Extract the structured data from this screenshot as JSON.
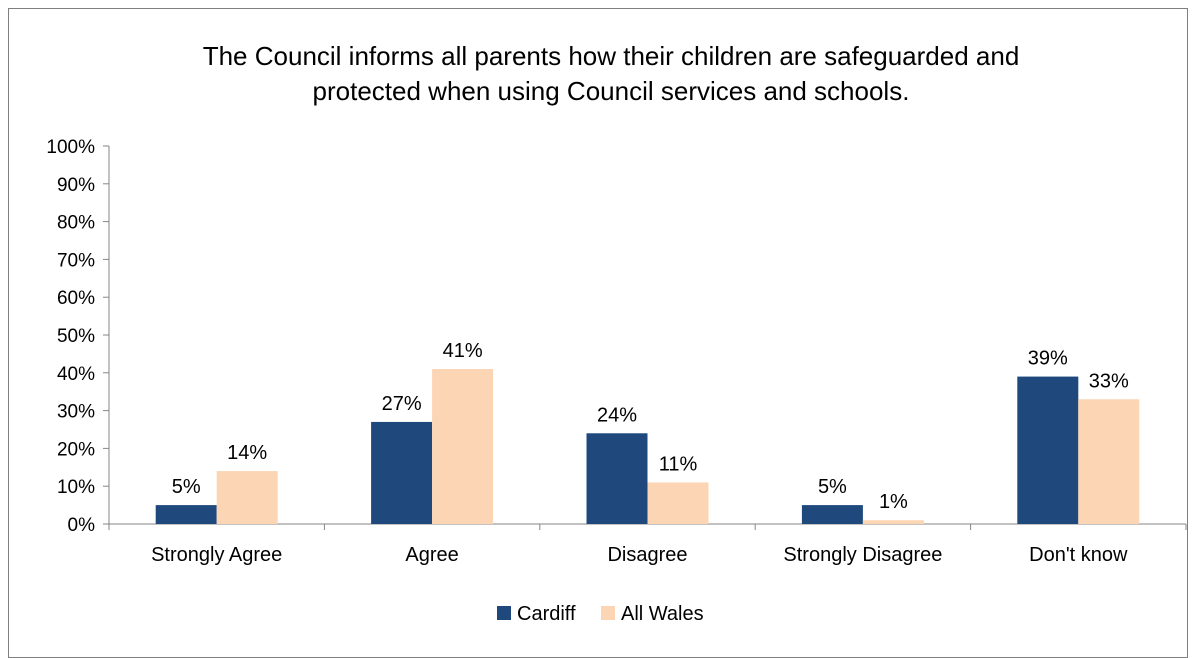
{
  "chart_data": {
    "type": "bar",
    "title": "The Council informs all parents how their children are safeguarded and protected when using Council services and schools.",
    "title_lines": [
      "The Council informs all parents how their children are safeguarded and",
      "protected when using Council services and schools."
    ],
    "categories": [
      "Strongly Agree",
      "Agree",
      "Disagree",
      "Strongly Disagree",
      "Don't know"
    ],
    "series": [
      {
        "name": "Cardiff",
        "color": "#1f497d",
        "values": [
          5,
          27,
          24,
          5,
          39
        ],
        "labels": [
          "5%",
          "27%",
          "24%",
          "5%",
          "39%"
        ]
      },
      {
        "name": "All Wales",
        "color": "#fcd5b5",
        "values": [
          14,
          41,
          11,
          1,
          33
        ],
        "labels": [
          "14%",
          "41%",
          "11%",
          "1%",
          "33%"
        ]
      }
    ],
    "ylim": [
      0,
      100
    ],
    "yticks": [
      "0%",
      "10%",
      "20%",
      "30%",
      "40%",
      "50%",
      "60%",
      "70%",
      "80%",
      "90%",
      "100%"
    ],
    "xlabel": "",
    "ylabel": "",
    "grid": false,
    "legend_position": "bottom"
  }
}
